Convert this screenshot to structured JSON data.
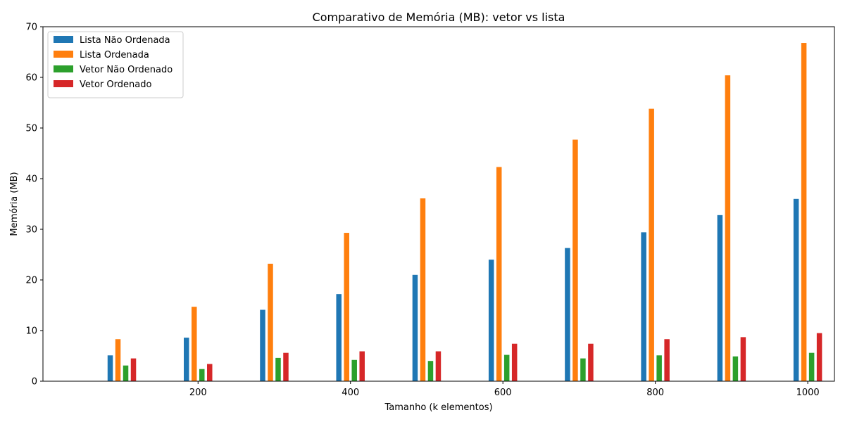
{
  "chart_data": {
    "type": "bar",
    "title": "Comparativo de Memória (MB): vetor vs lista",
    "xlabel": "Tamanho (k elementos)",
    "ylabel": "Memória (MB)",
    "x": [
      100,
      200,
      300,
      400,
      500,
      600,
      700,
      800,
      900,
      1000
    ],
    "xticks": [
      200,
      400,
      600,
      800,
      1000
    ],
    "xlim": [
      -3.5,
      1035
    ],
    "ylim": [
      0,
      70
    ],
    "yticks": [
      0,
      10,
      20,
      30,
      40,
      50,
      60,
      70
    ],
    "grid": false,
    "legend_position": "upper-left",
    "series": [
      {
        "name": "Lista Não Ordenada",
        "color": "#1f77b4",
        "values": [
          5.1,
          8.6,
          14.1,
          17.2,
          21.0,
          24.0,
          26.3,
          29.4,
          32.8,
          36.0
        ]
      },
      {
        "name": "Lista Ordenada",
        "color": "#ff7f0e",
        "values": [
          8.3,
          14.7,
          23.2,
          29.3,
          36.1,
          42.3,
          47.7,
          53.8,
          60.4,
          66.8
        ]
      },
      {
        "name": "Vetor Não Ordenado",
        "color": "#2ca02c",
        "values": [
          3.1,
          2.4,
          4.6,
          4.2,
          4.0,
          5.2,
          4.5,
          5.1,
          4.9,
          5.6
        ]
      },
      {
        "name": "Vetor Ordenado",
        "color": "#d62728",
        "values": [
          4.5,
          3.4,
          5.6,
          5.9,
          5.9,
          7.4,
          7.4,
          8.3,
          8.7,
          9.5
        ]
      }
    ]
  }
}
